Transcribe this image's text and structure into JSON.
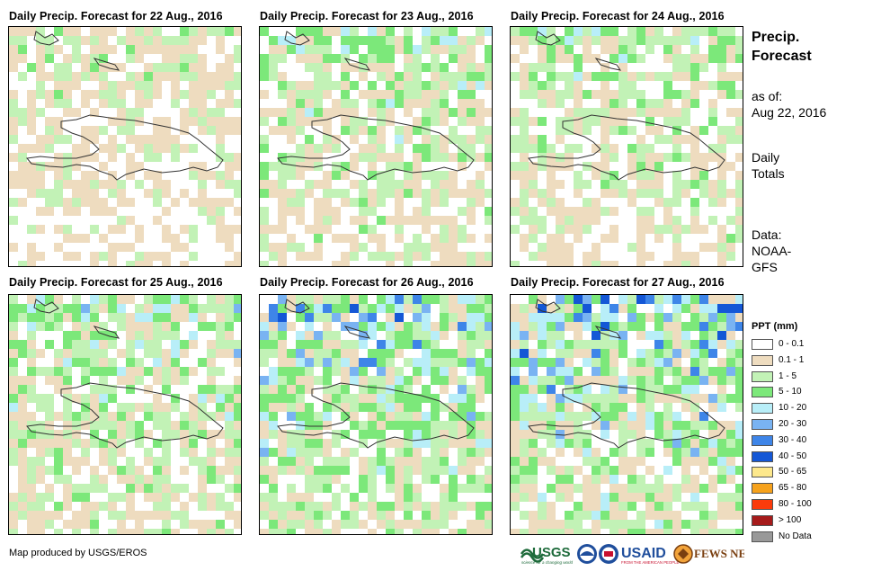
{
  "panels": [
    {
      "title": "Daily Precip. Forecast for 22 Aug., 2016",
      "seed": 11,
      "wet": 0.6
    },
    {
      "title": "Daily Precip. Forecast for 23 Aug., 2016",
      "seed": 23,
      "wet": 0.9
    },
    {
      "title": "Daily Precip. Forecast for 24 Aug., 2016",
      "seed": 37,
      "wet": 0.8
    },
    {
      "title": "Daily Precip. Forecast for 25 Aug., 2016",
      "seed": 41,
      "wet": 0.95
    },
    {
      "title": "Daily Precip. Forecast for 26 Aug., 2016",
      "seed": 53,
      "wet": 1.25
    },
    {
      "title": "Daily Precip. Forecast for 27 Aug., 2016",
      "seed": 67,
      "wet": 1.35
    }
  ],
  "sidebar": {
    "title_line1": "Precip.",
    "title_line2": "Forecast",
    "asof_label": "as of:",
    "asof_date": "Aug 22, 2016",
    "totals_line1": "Daily",
    "totals_line2": "Totals",
    "data_label": "Data:",
    "data_source_line1": "NOAA-",
    "data_source_line2": "GFS"
  },
  "legend": {
    "title": "PPT (mm)",
    "items": [
      {
        "label": "0 - 0.1",
        "color": "#ffffff"
      },
      {
        "label": "0.1 - 1",
        "color": "#eedcbf"
      },
      {
        "label": "1 - 5",
        "color": "#c2f2b6"
      },
      {
        "label": "5 - 10",
        "color": "#7ce87a"
      },
      {
        "label": "10 - 20",
        "color": "#b8eef8"
      },
      {
        "label": "20 - 30",
        "color": "#79b3f2"
      },
      {
        "label": "30 - 40",
        "color": "#3e85e8"
      },
      {
        "label": "40 - 50",
        "color": "#1457d6"
      },
      {
        "label": "50 - 65",
        "color": "#fde88c"
      },
      {
        "label": "65 - 80",
        "color": "#f6a21c"
      },
      {
        "label": "80 - 100",
        "color": "#fb3b0b"
      },
      {
        "label": "> 100",
        "color": "#a61b1b"
      },
      {
        "label": "No Data",
        "color": "#999999"
      }
    ]
  },
  "footer": {
    "credit": "Map produced by USGS/EROS",
    "logo_usgs": "USGS",
    "logo_usgs_tagline": "science for a changing world",
    "logo_usaid": "USAID",
    "logo_usaid_tagline": "FROM THE AMERICAN PEOPLE",
    "logo_fews": "FEWS NET"
  },
  "icons": {
    "noaa": "noaa-logo-icon",
    "usgs": "usgs-logo-icon",
    "usaid": "usaid-seal-icon",
    "fews": "fewsnet-logo-icon"
  }
}
